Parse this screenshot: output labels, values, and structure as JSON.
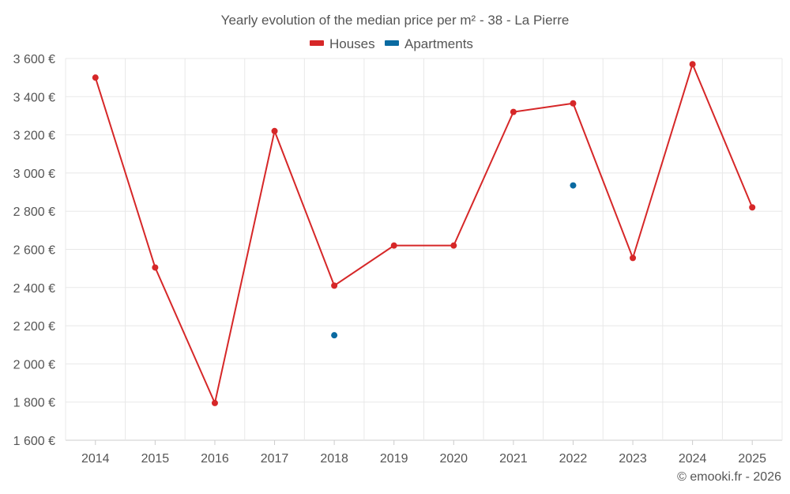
{
  "chart_data": {
    "type": "line",
    "title": "Yearly evolution of the median price per m² - 38 - La Pierre",
    "categories": [
      "2014",
      "2015",
      "2016",
      "2017",
      "2018",
      "2019",
      "2020",
      "2021",
      "2022",
      "2023",
      "2024",
      "2025"
    ],
    "series": [
      {
        "name": "Houses",
        "color": "#d62728",
        "values": [
          3500,
          2505,
          1795,
          3220,
          2410,
          2620,
          2620,
          3320,
          3365,
          2555,
          3570,
          2820
        ]
      },
      {
        "name": "Apartments",
        "color": "#0a6aa1",
        "values": [
          null,
          null,
          null,
          null,
          2150,
          null,
          null,
          null,
          2935,
          null,
          null,
          null
        ]
      }
    ],
    "ylim": [
      1600,
      3600
    ],
    "yticks": [
      1600,
      1800,
      2000,
      2200,
      2400,
      2600,
      2800,
      3000,
      3200,
      3400,
      3600
    ],
    "ytick_labels": [
      "1 600 €",
      "1 800 €",
      "2 000 €",
      "2 200 €",
      "2 400 €",
      "2 600 €",
      "2 800 €",
      "3 000 €",
      "3 200 €",
      "3 400 €",
      "3 600 €"
    ],
    "xlabel": "",
    "ylabel": "",
    "grid": true,
    "legend": "top-center"
  },
  "credit": "© emooki.fr - 2026"
}
